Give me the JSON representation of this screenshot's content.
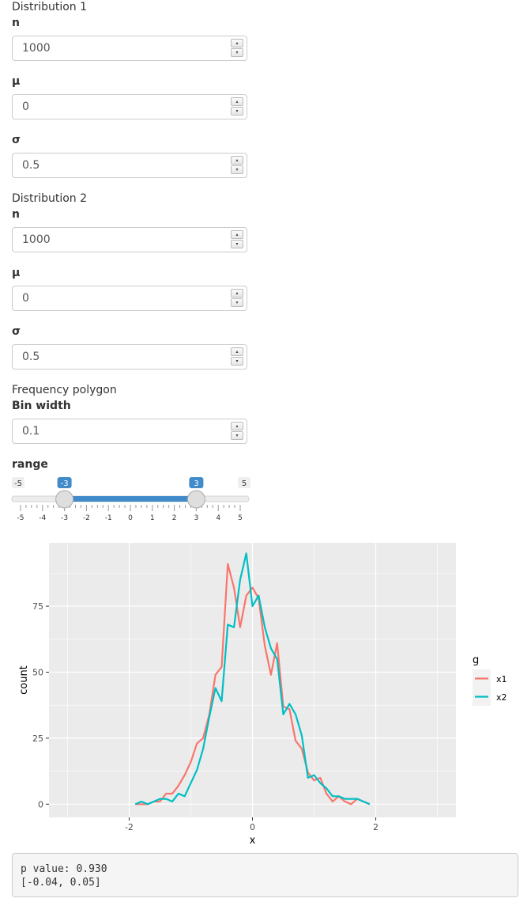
{
  "dist1": {
    "title": "Distribution 1",
    "n": {
      "label": "n",
      "value": "1000"
    },
    "mu": {
      "label": "μ",
      "value": "0"
    },
    "sigma": {
      "label": "σ",
      "value": "0.5"
    }
  },
  "dist2": {
    "title": "Distribution 2",
    "n": {
      "label": "n",
      "value": "1000"
    },
    "mu": {
      "label": "μ",
      "value": "0"
    },
    "sigma": {
      "label": "σ",
      "value": "0.5"
    }
  },
  "freq": {
    "title": "Frequency polygon",
    "binwidth": {
      "label": "Bin width",
      "value": "0.1"
    }
  },
  "range_slider": {
    "label": "range",
    "min": -5,
    "max": 5,
    "min_label": "-5",
    "max_label": "5",
    "low": -3,
    "high": 3,
    "low_label": "-3",
    "high_label": "3",
    "ticks": [
      "-5",
      "-4",
      "-3",
      "-2",
      "-1",
      "0",
      "1",
      "2",
      "3",
      "4",
      "5"
    ],
    "accent": "#428bca"
  },
  "chart_data": {
    "type": "line",
    "xlabel": "x",
    "ylabel": "count",
    "xlim": [
      -3.3,
      3.3
    ],
    "ylim": [
      -5,
      99
    ],
    "xticks": [
      -2,
      0,
      2
    ],
    "yticks": [
      0,
      25,
      50,
      75
    ],
    "grid": true,
    "legend": {
      "title": "g",
      "placement": "right"
    },
    "series": [
      {
        "name": "x1",
        "color": "#F8766D",
        "x": [
          -1.9,
          -1.8,
          -1.7,
          -1.6,
          -1.5,
          -1.4,
          -1.3,
          -1.2,
          -1.1,
          -1.0,
          -0.9,
          -0.8,
          -0.7,
          -0.6,
          -0.5,
          -0.4,
          -0.3,
          -0.2,
          -0.1,
          0.0,
          0.1,
          0.2,
          0.3,
          0.4,
          0.5,
          0.6,
          0.7,
          0.8,
          0.9,
          1.0,
          1.1,
          1.2,
          1.3,
          1.4,
          1.5,
          1.6,
          1.7,
          1.8,
          1.9
        ],
        "y": [
          0,
          0,
          0,
          1,
          1,
          4,
          4,
          7,
          11,
          16,
          23,
          25,
          34,
          49,
          52,
          91,
          82,
          67,
          79,
          82,
          78,
          60,
          49,
          61,
          37,
          36,
          24,
          21,
          12,
          9,
          10,
          4,
          1,
          3,
          1,
          0,
          2,
          1,
          0
        ]
      },
      {
        "name": "x2",
        "color": "#00BFC4",
        "x": [
          -1.9,
          -1.8,
          -1.7,
          -1.6,
          -1.5,
          -1.4,
          -1.3,
          -1.2,
          -1.1,
          -1.0,
          -0.9,
          -0.8,
          -0.7,
          -0.6,
          -0.5,
          -0.4,
          -0.3,
          -0.2,
          -0.1,
          0.0,
          0.1,
          0.2,
          0.3,
          0.4,
          0.5,
          0.6,
          0.7,
          0.8,
          0.9,
          1.0,
          1.1,
          1.2,
          1.3,
          1.4,
          1.5,
          1.6,
          1.7,
          1.8,
          1.9
        ],
        "y": [
          0,
          1,
          0,
          1,
          2,
          2,
          1,
          4,
          3,
          8,
          13,
          21,
          33,
          44,
          39,
          68,
          67,
          85,
          95,
          75,
          79,
          67,
          59,
          55,
          34,
          38,
          34,
          26,
          10,
          11,
          8,
          6,
          3,
          3,
          2,
          2,
          2,
          1,
          0
        ]
      }
    ]
  },
  "result": {
    "pvalue": "p value: 0.930",
    "ci": "[-0.04, 0.05]"
  }
}
